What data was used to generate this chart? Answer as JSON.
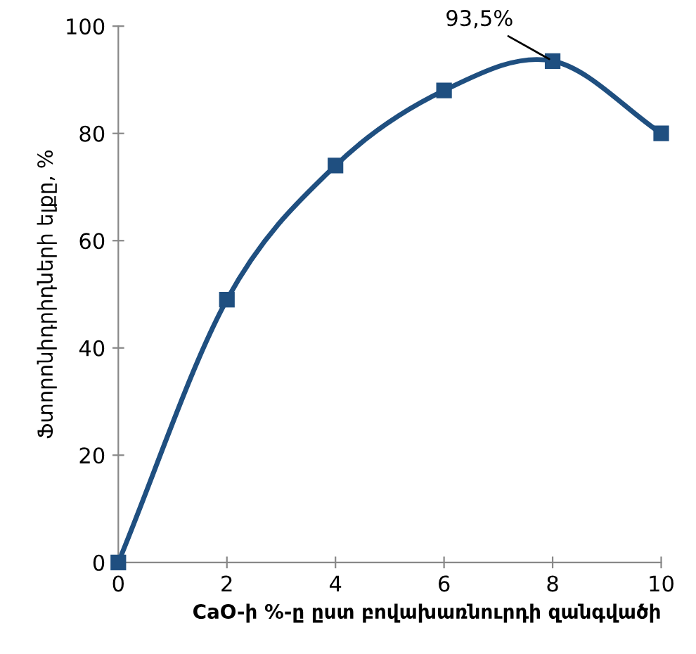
{
  "chart_data": {
    "type": "line",
    "xlabel": "CaO-ի %-ը ըստ բովախառնուրդի զանգվածի",
    "ylabel": "Ֆտորոնիդրիդների ելքը, %",
    "x": [
      0,
      2,
      4,
      6,
      8,
      10
    ],
    "series": [
      {
        "color": "#1f4f80",
        "values": [
          0,
          49,
          74,
          88,
          93.5,
          80
        ]
      }
    ],
    "annotations": [
      {
        "text": "93,5%",
        "x": 8,
        "y": 93.5
      }
    ],
    "xlim": [
      0,
      10
    ],
    "xticks": [
      0,
      2,
      4,
      6,
      8,
      10
    ],
    "ylim": [
      0,
      100
    ],
    "yticks": [
      0,
      20,
      40,
      60,
      80,
      100
    ],
    "marker": "square",
    "line_style": "solid",
    "grid": false
  }
}
